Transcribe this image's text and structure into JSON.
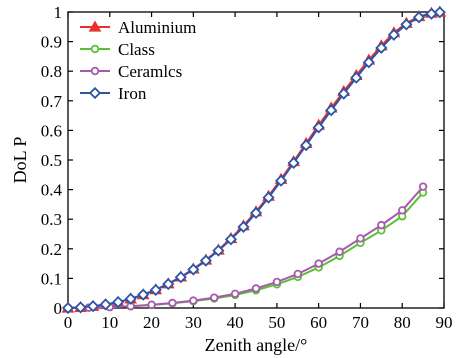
{
  "chart_data": {
    "type": "line",
    "title": "",
    "xlabel": "Zenith angle/°",
    "ylabel": "DoL P",
    "xlim": [
      0,
      90
    ],
    "ylim": [
      0,
      1
    ],
    "x_ticks": [
      "0",
      "10",
      "20",
      "30",
      "40",
      "50",
      "60",
      "70",
      "80",
      "90"
    ],
    "y_ticks": [
      "0",
      "0.1",
      "0.2",
      "0.3",
      "0.4",
      "0.5",
      "0.6",
      "0.7",
      "0.8",
      "0.9",
      "1"
    ],
    "grid": false,
    "legend_position": "top-left",
    "series": [
      {
        "name": "Aluminium",
        "color": "#e8312c",
        "marker": "triangle",
        "x": [
          0,
          3,
          6,
          9,
          12,
          15,
          18,
          21,
          24,
          27,
          30,
          33,
          36,
          39,
          42,
          45,
          48,
          51,
          54,
          57,
          60,
          63,
          66,
          69,
          72,
          75,
          78,
          81,
          84,
          87,
          89
        ],
        "y": [
          0.0,
          0.002,
          0.006,
          0.012,
          0.02,
          0.031,
          0.045,
          0.062,
          0.082,
          0.105,
          0.132,
          0.162,
          0.196,
          0.235,
          0.278,
          0.325,
          0.378,
          0.435,
          0.495,
          0.556,
          0.618,
          0.676,
          0.732,
          0.786,
          0.838,
          0.886,
          0.93,
          0.962,
          0.985,
          0.996,
          1.0
        ]
      },
      {
        "name": "Class",
        "color": "#5cc036",
        "marker": "circle",
        "x": [
          0,
          5,
          10,
          15,
          20,
          25,
          30,
          35,
          40,
          45,
          50,
          55,
          60,
          65,
          70,
          75,
          80,
          85
        ],
        "y": [
          0.0,
          0.001,
          0.003,
          0.006,
          0.01,
          0.016,
          0.023,
          0.032,
          0.044,
          0.06,
          0.08,
          0.105,
          0.137,
          0.176,
          0.22,
          0.262,
          0.31,
          0.39
        ]
      },
      {
        "name": "Ceramlcs",
        "color": "#a65aac",
        "marker": "circle",
        "x": [
          0,
          5,
          10,
          15,
          20,
          25,
          30,
          35,
          40,
          45,
          50,
          55,
          60,
          65,
          70,
          75,
          80,
          85
        ],
        "y": [
          0.0,
          0.001,
          0.003,
          0.006,
          0.011,
          0.017,
          0.025,
          0.035,
          0.048,
          0.066,
          0.088,
          0.115,
          0.15,
          0.19,
          0.235,
          0.28,
          0.33,
          0.41
        ]
      },
      {
        "name": "Iron",
        "color": "#2e54a8",
        "marker": "diamond",
        "x": [
          0,
          3,
          6,
          9,
          12,
          15,
          18,
          21,
          24,
          27,
          30,
          33,
          36,
          39,
          42,
          45,
          48,
          51,
          54,
          57,
          60,
          63,
          66,
          69,
          72,
          75,
          78,
          81,
          84,
          87,
          89
        ],
        "y": [
          0.0,
          0.002,
          0.006,
          0.012,
          0.02,
          0.031,
          0.045,
          0.061,
          0.081,
          0.104,
          0.13,
          0.16,
          0.194,
          0.232,
          0.274,
          0.321,
          0.373,
          0.43,
          0.49,
          0.55,
          0.61,
          0.668,
          0.724,
          0.778,
          0.83,
          0.879,
          0.923,
          0.958,
          0.982,
          0.994,
          0.999
        ]
      }
    ]
  }
}
